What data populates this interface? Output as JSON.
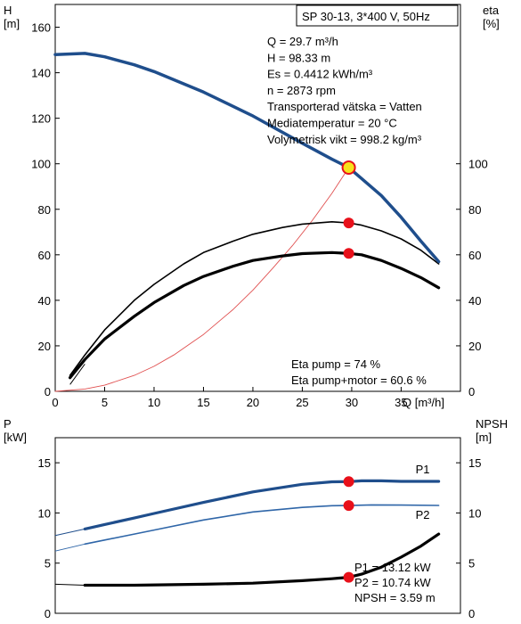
{
  "colors": {
    "head": "#1f4e8c",
    "p1": "#1f4e8c",
    "p2": "#2f66a8",
    "efficiency": "#000000",
    "system_curve": "#e05050",
    "duty_point": "#e8101a",
    "duty_point_fill": "#f7e11a",
    "frame": "#000000"
  },
  "chart_data": [
    {
      "type": "line",
      "title": "SP 30-13, 3*400 V, 50Hz",
      "xlabel": "Q [m³/h]",
      "ylabel_left": "H\n[m]",
      "ylabel_right": "eta\n[%]",
      "xlim": [
        0,
        41
      ],
      "ylim_left": [
        0,
        170
      ],
      "ylim_right": [
        0,
        170
      ],
      "x_ticks": [
        0,
        5,
        10,
        15,
        20,
        25,
        30,
        35
      ],
      "y_ticks_left": [
        0,
        20,
        40,
        60,
        80,
        100,
        120,
        140,
        160
      ],
      "y_ticks_right": [
        0,
        20,
        40,
        60,
        80,
        100
      ],
      "series": [
        {
          "name": "H",
          "axis": "left",
          "style": "head",
          "points": [
            [
              0,
              148
            ],
            [
              3,
              148.5
            ],
            [
              5,
              147
            ],
            [
              8,
              143.5
            ],
            [
              10,
              140.5
            ],
            [
              15,
              131.5
            ],
            [
              20,
              121
            ],
            [
              25,
              109
            ],
            [
              28,
              102
            ],
            [
              29.7,
              98.33
            ],
            [
              31,
              93.5
            ],
            [
              33,
              86
            ],
            [
              35,
              76.5
            ],
            [
              37,
              66
            ],
            [
              38.8,
              57
            ]
          ]
        },
        {
          "name": "Eta pump",
          "axis": "right",
          "style": "eta_pump",
          "points": [
            [
              1.5,
              7
            ],
            [
              3,
              16
            ],
            [
              5,
              27
            ],
            [
              8,
              40
            ],
            [
              10,
              47
            ],
            [
              13,
              56
            ],
            [
              15,
              61
            ],
            [
              18,
              66
            ],
            [
              20,
              69
            ],
            [
              23,
              72
            ],
            [
              25,
              73.5
            ],
            [
              28,
              74.5
            ],
            [
              29.7,
              74
            ],
            [
              31,
              73
            ],
            [
              33,
              70.5
            ],
            [
              35,
              67
            ],
            [
              37,
              62
            ],
            [
              38.8,
              56
            ]
          ]
        },
        {
          "name": "Eta pump+motor",
          "axis": "right",
          "style": "eta_total",
          "points": [
            [
              1.5,
              6
            ],
            [
              3,
              14
            ],
            [
              5,
              23
            ],
            [
              8,
              33
            ],
            [
              10,
              39
            ],
            [
              13,
              46.5
            ],
            [
              15,
              50.5
            ],
            [
              18,
              55
            ],
            [
              20,
              57.5
            ],
            [
              23,
              59.5
            ],
            [
              25,
              60.5
            ],
            [
              28,
              61
            ],
            [
              29.7,
              60.6
            ],
            [
              31,
              60
            ],
            [
              33,
              57.5
            ],
            [
              35,
              54
            ],
            [
              37,
              50
            ],
            [
              38.8,
              45.5
            ]
          ]
        },
        {
          "name": "System curve",
          "axis": "left",
          "style": "system",
          "points": [
            [
              0,
              0
            ],
            [
              3,
              1
            ],
            [
              5,
              2.7
            ],
            [
              8,
              7
            ],
            [
              10,
              11
            ],
            [
              12,
              16
            ],
            [
              15,
              25
            ],
            [
              18,
              36
            ],
            [
              20,
              44.5
            ],
            [
              22,
              54
            ],
            [
              24,
              64
            ],
            [
              26,
              75
            ],
            [
              28,
              87
            ],
            [
              29.7,
              98.33
            ],
            [
              30.2,
              100
            ]
          ]
        }
      ],
      "duty_points": [
        {
          "x": 29.7,
          "y": 98.33,
          "axis": "left",
          "kind": "head"
        },
        {
          "x": 29.7,
          "y": 74,
          "axis": "right",
          "kind": "eta"
        },
        {
          "x": 29.7,
          "y": 60.6,
          "axis": "right",
          "kind": "eta"
        }
      ],
      "info_box": [
        "Q = 29.7 m³/h",
        "H = 98.33 m",
        "Es = 0.4412 kWh/m³",
        "n = 2873 rpm",
        "Transporterad vätska = Vatten",
        "Mediatemperatur = 20 °C",
        "Volymetrisk vikt = 998.2 kg/m³"
      ],
      "annotations": [
        "Eta pump = 74 %",
        "Eta pump+motor = 60.6 %"
      ],
      "grid": false
    },
    {
      "type": "line",
      "xlabel": "",
      "ylabel_left": "P\n[kW]",
      "ylabel_right": "NPSH\n[m]",
      "xlim": [
        0,
        41
      ],
      "ylim_left": [
        0,
        17.5
      ],
      "ylim_right": [
        0,
        17.5
      ],
      "y_ticks_left": [
        0,
        5,
        10,
        15
      ],
      "y_ticks_right": [
        0,
        5,
        10,
        15
      ],
      "series": [
        {
          "name": "P1",
          "axis": "left",
          "style": "p1",
          "label_at": 38.8,
          "points": [
            [
              3,
              8.4
            ],
            [
              5,
              8.85
            ],
            [
              8,
              9.5
            ],
            [
              10,
              9.95
            ],
            [
              15,
              11.05
            ],
            [
              20,
              12.1
            ],
            [
              25,
              12.85
            ],
            [
              28,
              13.1
            ],
            [
              29.7,
              13.12
            ],
            [
              31,
              13.2
            ],
            [
              33,
              13.2
            ],
            [
              35,
              13.15
            ],
            [
              38.8,
              13.15
            ]
          ]
        },
        {
          "name": "P2",
          "axis": "left",
          "style": "p2",
          "label_at": 38.8,
          "points": [
            [
              3,
              6.9
            ],
            [
              5,
              7.3
            ],
            [
              8,
              7.9
            ],
            [
              10,
              8.3
            ],
            [
              15,
              9.3
            ],
            [
              20,
              10.1
            ],
            [
              25,
              10.55
            ],
            [
              28,
              10.72
            ],
            [
              29.7,
              10.74
            ],
            [
              32,
              10.8
            ],
            [
              35,
              10.78
            ],
            [
              38.8,
              10.75
            ]
          ]
        },
        {
          "name": "NPSH",
          "axis": "right",
          "style": "npsh",
          "points": [
            [
              3,
              2.8
            ],
            [
              8,
              2.8
            ],
            [
              15,
              2.9
            ],
            [
              20,
              3.0
            ],
            [
              25,
              3.25
            ],
            [
              28,
              3.45
            ],
            [
              29.7,
              3.59
            ],
            [
              31,
              3.9
            ],
            [
              33,
              4.6
            ],
            [
              35,
              5.6
            ],
            [
              37,
              6.7
            ],
            [
              38.8,
              7.9
            ]
          ]
        }
      ],
      "stub_series": [
        {
          "style": "p1",
          "points": [
            [
              0,
              7.75
            ],
            [
              3,
              8.4
            ]
          ]
        },
        {
          "style": "p2",
          "points": [
            [
              0,
              6.2
            ],
            [
              3,
              6.9
            ]
          ]
        },
        {
          "style": "npsh_thin",
          "points": [
            [
              0,
              2.9
            ],
            [
              3,
              2.8
            ]
          ]
        }
      ],
      "duty_points": [
        {
          "x": 29.7,
          "y": 13.12,
          "axis": "left"
        },
        {
          "x": 29.7,
          "y": 10.74,
          "axis": "left"
        },
        {
          "x": 29.7,
          "y": 3.59,
          "axis": "right"
        }
      ],
      "annotations": [
        "P1 = 13.12 kW",
        "P2 = 10.74 kW",
        "NPSH = 3.59 m"
      ],
      "grid": false
    }
  ]
}
